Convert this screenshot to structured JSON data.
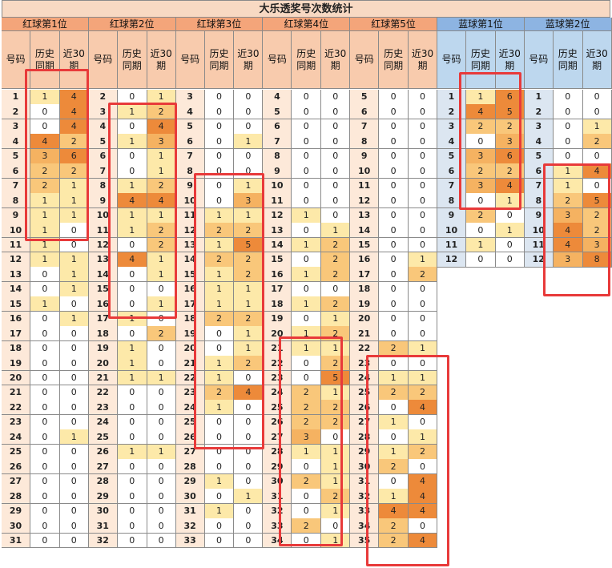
{
  "title": "大乐透奖号次数统计",
  "sub_headers": [
    "号码",
    "历史\n同期",
    "近30\n期"
  ],
  "colors": {
    "red_header": "#f4a57a",
    "blue_header": "#8db4e2",
    "red_sub_header": "#f8cbad",
    "blue_sub_header": "#bdd7ee",
    "red_num_bg": "#fde9d9",
    "blue_num_bg": "#dce6f1",
    "value_1": "#fde9a9",
    "value_2": "#f9c77a",
    "value_3": "#f5b261",
    "value_high": "#ed8a3a",
    "highlight_box": "#e83a3a"
  },
  "groups": [
    {
      "name": "红球第1位",
      "type": "red",
      "rows": [
        [
          1,
          1,
          4
        ],
        [
          2,
          0,
          4
        ],
        [
          3,
          0,
          4
        ],
        [
          4,
          4,
          2
        ],
        [
          5,
          3,
          6
        ],
        [
          6,
          2,
          2
        ],
        [
          7,
          2,
          1
        ],
        [
          8,
          1,
          1
        ],
        [
          9,
          1,
          1
        ],
        [
          10,
          1,
          0
        ],
        [
          11,
          1,
          0
        ],
        [
          12,
          1,
          1
        ],
        [
          13,
          0,
          1
        ],
        [
          14,
          0,
          1
        ],
        [
          15,
          1,
          0
        ],
        [
          16,
          0,
          1
        ],
        [
          17,
          0,
          0
        ],
        [
          18,
          0,
          0
        ],
        [
          19,
          0,
          0
        ],
        [
          20,
          0,
          0
        ],
        [
          21,
          0,
          0
        ],
        [
          22,
          0,
          0
        ],
        [
          23,
          0,
          0
        ],
        [
          24,
          0,
          1
        ],
        [
          25,
          0,
          0
        ],
        [
          26,
          0,
          0
        ],
        [
          27,
          0,
          0
        ],
        [
          28,
          0,
          0
        ],
        [
          29,
          0,
          0
        ],
        [
          30,
          0,
          0
        ],
        [
          31,
          0,
          0
        ]
      ]
    },
    {
      "name": "红球第2位",
      "type": "red",
      "rows": [
        [
          2,
          0,
          1
        ],
        [
          3,
          1,
          2
        ],
        [
          4,
          0,
          4
        ],
        [
          5,
          1,
          3
        ],
        [
          6,
          0,
          1
        ],
        [
          7,
          0,
          1
        ],
        [
          8,
          1,
          2
        ],
        [
          9,
          4,
          4
        ],
        [
          10,
          1,
          1
        ],
        [
          11,
          1,
          2
        ],
        [
          12,
          0,
          2
        ],
        [
          13,
          4,
          1
        ],
        [
          14,
          0,
          1
        ],
        [
          15,
          0,
          0
        ],
        [
          16,
          0,
          1
        ],
        [
          17,
          1,
          0
        ],
        [
          18,
          0,
          2
        ],
        [
          19,
          1,
          0
        ],
        [
          20,
          1,
          0
        ],
        [
          21,
          1,
          1
        ],
        [
          22,
          0,
          0
        ],
        [
          23,
          0,
          0
        ],
        [
          24,
          0,
          0
        ],
        [
          25,
          0,
          0
        ],
        [
          26,
          1,
          1
        ],
        [
          27,
          0,
          0
        ],
        [
          28,
          0,
          0
        ],
        [
          29,
          0,
          0
        ],
        [
          30,
          0,
          0
        ],
        [
          31,
          0,
          0
        ],
        [
          32,
          0,
          0
        ]
      ]
    },
    {
      "name": "红球第3位",
      "type": "red",
      "rows": [
        [
          3,
          0,
          0
        ],
        [
          4,
          0,
          0
        ],
        [
          5,
          0,
          0
        ],
        [
          6,
          0,
          1
        ],
        [
          7,
          0,
          0
        ],
        [
          8,
          0,
          0
        ],
        [
          9,
          0,
          1
        ],
        [
          10,
          0,
          3
        ],
        [
          11,
          1,
          1
        ],
        [
          12,
          2,
          2
        ],
        [
          13,
          1,
          5
        ],
        [
          14,
          2,
          2
        ],
        [
          15,
          1,
          2
        ],
        [
          16,
          1,
          1
        ],
        [
          17,
          1,
          1
        ],
        [
          18,
          2,
          2
        ],
        [
          19,
          0,
          1
        ],
        [
          20,
          0,
          1
        ],
        [
          21,
          1,
          2
        ],
        [
          22,
          1,
          0
        ],
        [
          23,
          2,
          4
        ],
        [
          24,
          1,
          0
        ],
        [
          25,
          0,
          0
        ],
        [
          26,
          0,
          0
        ],
        [
          27,
          0,
          0
        ],
        [
          28,
          0,
          0
        ],
        [
          29,
          1,
          0
        ],
        [
          30,
          0,
          1
        ],
        [
          31,
          1,
          0
        ],
        [
          32,
          0,
          0
        ],
        [
          33,
          0,
          0
        ]
      ]
    },
    {
      "name": "红球第4位",
      "type": "red",
      "rows": [
        [
          4,
          0,
          0
        ],
        [
          5,
          0,
          0
        ],
        [
          6,
          0,
          0
        ],
        [
          7,
          0,
          0
        ],
        [
          8,
          0,
          0
        ],
        [
          9,
          0,
          0
        ],
        [
          10,
          0,
          0
        ],
        [
          11,
          0,
          0
        ],
        [
          12,
          1,
          0
        ],
        [
          13,
          0,
          1
        ],
        [
          14,
          1,
          2
        ],
        [
          15,
          0,
          2
        ],
        [
          16,
          1,
          2
        ],
        [
          17,
          0,
          0
        ],
        [
          18,
          1,
          2
        ],
        [
          19,
          0,
          1
        ],
        [
          20,
          1,
          2
        ],
        [
          21,
          1,
          1
        ],
        [
          22,
          0,
          2
        ],
        [
          23,
          0,
          5
        ],
        [
          24,
          2,
          1
        ],
        [
          25,
          2,
          2
        ],
        [
          26,
          2,
          2
        ],
        [
          27,
          3,
          0
        ],
        [
          28,
          1,
          1
        ],
        [
          29,
          0,
          1
        ],
        [
          30,
          2,
          1
        ],
        [
          31,
          0,
          2
        ],
        [
          32,
          0,
          1
        ],
        [
          33,
          2,
          0
        ],
        [
          34,
          0,
          1
        ]
      ]
    },
    {
      "name": "红球第5位",
      "type": "red",
      "rows": [
        [
          5,
          0,
          0
        ],
        [
          6,
          0,
          0
        ],
        [
          7,
          0,
          0
        ],
        [
          8,
          0,
          0
        ],
        [
          9,
          0,
          0
        ],
        [
          10,
          0,
          0
        ],
        [
          11,
          0,
          0
        ],
        [
          12,
          0,
          0
        ],
        [
          13,
          0,
          0
        ],
        [
          14,
          0,
          0
        ],
        [
          15,
          0,
          0
        ],
        [
          16,
          0,
          1
        ],
        [
          17,
          0,
          2
        ],
        [
          18,
          0,
          0
        ],
        [
          19,
          0,
          0
        ],
        [
          20,
          0,
          0
        ],
        [
          21,
          0,
          0
        ],
        [
          22,
          2,
          1
        ],
        [
          23,
          0,
          0
        ],
        [
          24,
          1,
          1
        ],
        [
          25,
          2,
          2
        ],
        [
          26,
          0,
          4
        ],
        [
          27,
          1,
          0
        ],
        [
          28,
          0,
          1
        ],
        [
          29,
          1,
          2
        ],
        [
          30,
          2,
          0
        ],
        [
          31,
          0,
          4
        ],
        [
          32,
          1,
          4
        ],
        [
          33,
          4,
          4
        ],
        [
          34,
          2,
          0
        ],
        [
          35,
          2,
          4
        ]
      ]
    },
    {
      "name": "蓝球第1位",
      "type": "blue",
      "rows": [
        [
          1,
          1,
          6
        ],
        [
          2,
          4,
          5
        ],
        [
          3,
          2,
          2
        ],
        [
          4,
          0,
          3
        ],
        [
          5,
          3,
          6
        ],
        [
          6,
          2,
          2
        ],
        [
          7,
          3,
          4
        ],
        [
          8,
          0,
          1
        ],
        [
          9,
          2,
          0
        ],
        [
          10,
          0,
          1
        ],
        [
          11,
          1,
          0
        ],
        [
          12,
          0,
          0
        ]
      ]
    },
    {
      "name": "蓝球第2位",
      "type": "blue",
      "rows": [
        [
          1,
          0,
          0
        ],
        [
          2,
          0,
          0
        ],
        [
          3,
          0,
          1
        ],
        [
          4,
          0,
          2
        ],
        [
          5,
          0,
          0
        ],
        [
          6,
          1,
          4
        ],
        [
          7,
          1,
          0
        ],
        [
          8,
          2,
          5
        ],
        [
          9,
          3,
          2
        ],
        [
          10,
          4,
          2
        ],
        [
          11,
          4,
          3
        ],
        [
          12,
          3,
          8
        ]
      ]
    }
  ]
}
